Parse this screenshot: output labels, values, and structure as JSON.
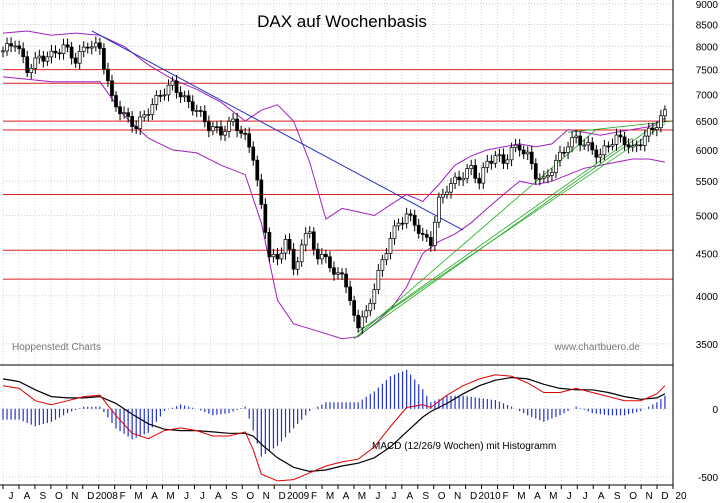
{
  "chart_data": [
    {
      "type": "candlestick",
      "title": "DAX auf Wochenbasis",
      "watermark_left": "Hoppenstedt Charts",
      "watermark_right": "www.chartbuero.de",
      "y_ticks": [
        3500,
        4000,
        4500,
        5000,
        5500,
        6000,
        6500,
        7000,
        7500,
        8000,
        8500,
        9000
      ],
      "ylim": [
        3300,
        9100
      ],
      "y_scale": "log",
      "grid": true,
      "horizontal_levels": [
        7500,
        7220,
        6500,
        6340,
        5300,
        4540,
        4190
      ],
      "x_labels": [
        "J",
        "A",
        "S",
        "O",
        "N",
        "D",
        "2008",
        "F",
        "M",
        "A",
        "M",
        "J",
        "J",
        "A",
        "S",
        "O",
        "N",
        "D",
        "2009",
        "F",
        "M",
        "A",
        "M",
        "J",
        "J",
        "A",
        "S",
        "O",
        "N",
        "D",
        "2010",
        "F",
        "M",
        "A",
        "M",
        "J",
        "J",
        "A",
        "S",
        "O",
        "N",
        "D",
        "20"
      ],
      "x_start": "2007-07",
      "close_series_points": [
        {
          "w": 0,
          "v": 7900
        },
        {
          "w": 3,
          "v": 8100
        },
        {
          "w": 6,
          "v": 7500
        },
        {
          "w": 9,
          "v": 7750
        },
        {
          "w": 12,
          "v": 7800
        },
        {
          "w": 15,
          "v": 8000
        },
        {
          "w": 18,
          "v": 7700
        },
        {
          "w": 21,
          "v": 8050
        },
        {
          "w": 24,
          "v": 7950
        },
        {
          "w": 27,
          "v": 6900
        },
        {
          "w": 30,
          "v": 6600
        },
        {
          "w": 33,
          "v": 6400
        },
        {
          "w": 36,
          "v": 6700
        },
        {
          "w": 39,
          "v": 7000
        },
        {
          "w": 42,
          "v": 7200
        },
        {
          "w": 45,
          "v": 6900
        },
        {
          "w": 48,
          "v": 6700
        },
        {
          "w": 51,
          "v": 6400
        },
        {
          "w": 54,
          "v": 6300
        },
        {
          "w": 57,
          "v": 6500
        },
        {
          "w": 60,
          "v": 6200
        },
        {
          "w": 62,
          "v": 5900
        },
        {
          "w": 64,
          "v": 5100
        },
        {
          "w": 66,
          "v": 4500
        },
        {
          "w": 68,
          "v": 4400
        },
        {
          "w": 70,
          "v": 4700
        },
        {
          "w": 72,
          "v": 4300
        },
        {
          "w": 74,
          "v": 4600
        },
        {
          "w": 76,
          "v": 4800
        },
        {
          "w": 78,
          "v": 4400
        },
        {
          "w": 80,
          "v": 4500
        },
        {
          "w": 82,
          "v": 4200
        },
        {
          "w": 84,
          "v": 4300
        },
        {
          "w": 86,
          "v": 3900
        },
        {
          "w": 88,
          "v": 3700
        },
        {
          "w": 90,
          "v": 3800
        },
        {
          "w": 92,
          "v": 4100
        },
        {
          "w": 94,
          "v": 4400
        },
        {
          "w": 96,
          "v": 4700
        },
        {
          "w": 98,
          "v": 4900
        },
        {
          "w": 100,
          "v": 5000
        },
        {
          "w": 102,
          "v": 4900
        },
        {
          "w": 104,
          "v": 4700
        },
        {
          "w": 106,
          "v": 4650
        },
        {
          "w": 108,
          "v": 5200
        },
        {
          "w": 110,
          "v": 5400
        },
        {
          "w": 112,
          "v": 5500
        },
        {
          "w": 114,
          "v": 5600
        },
        {
          "w": 116,
          "v": 5700
        },
        {
          "w": 118,
          "v": 5500
        },
        {
          "w": 120,
          "v": 5800
        },
        {
          "w": 122,
          "v": 5900
        },
        {
          "w": 124,
          "v": 5800
        },
        {
          "w": 126,
          "v": 6000
        },
        {
          "w": 128,
          "v": 6050
        },
        {
          "w": 130,
          "v": 5900
        },
        {
          "w": 132,
          "v": 5600
        },
        {
          "w": 134,
          "v": 5500
        },
        {
          "w": 136,
          "v": 5700
        },
        {
          "w": 138,
          "v": 5900
        },
        {
          "w": 140,
          "v": 6100
        },
        {
          "w": 142,
          "v": 6200
        },
        {
          "w": 144,
          "v": 6100
        },
        {
          "w": 146,
          "v": 6000
        },
        {
          "w": 148,
          "v": 5900
        },
        {
          "w": 150,
          "v": 6100
        },
        {
          "w": 152,
          "v": 6200
        },
        {
          "w": 154,
          "v": 6150
        },
        {
          "w": 156,
          "v": 6000
        },
        {
          "w": 158,
          "v": 6150
        },
        {
          "w": 160,
          "v": 6300
        },
        {
          "w": 162,
          "v": 6450
        },
        {
          "w": 164,
          "v": 6650
        }
      ],
      "upper_band_points": [
        {
          "w": 0,
          "v": 8300
        },
        {
          "w": 6,
          "v": 8350
        },
        {
          "w": 12,
          "v": 8250
        },
        {
          "w": 18,
          "v": 8300
        },
        {
          "w": 24,
          "v": 8250
        },
        {
          "w": 30,
          "v": 8000
        },
        {
          "w": 36,
          "v": 7600
        },
        {
          "w": 42,
          "v": 7300
        },
        {
          "w": 48,
          "v": 7100
        },
        {
          "w": 54,
          "v": 6850
        },
        {
          "w": 60,
          "v": 6500
        },
        {
          "w": 64,
          "v": 6700
        },
        {
          "w": 68,
          "v": 6800
        },
        {
          "w": 72,
          "v": 6500
        },
        {
          "w": 76,
          "v": 5800
        },
        {
          "w": 80,
          "v": 4950
        },
        {
          "w": 84,
          "v": 5100
        },
        {
          "w": 88,
          "v": 5050
        },
        {
          "w": 92,
          "v": 5000
        },
        {
          "w": 96,
          "v": 5150
        },
        {
          "w": 100,
          "v": 5300
        },
        {
          "w": 104,
          "v": 5200
        },
        {
          "w": 108,
          "v": 5450
        },
        {
          "w": 112,
          "v": 5750
        },
        {
          "w": 116,
          "v": 5900
        },
        {
          "w": 120,
          "v": 6000
        },
        {
          "w": 124,
          "v": 6050
        },
        {
          "w": 128,
          "v": 6100
        },
        {
          "w": 132,
          "v": 6050
        },
        {
          "w": 136,
          "v": 6100
        },
        {
          "w": 140,
          "v": 6350
        },
        {
          "w": 144,
          "v": 6300
        },
        {
          "w": 148,
          "v": 6250
        },
        {
          "w": 152,
          "v": 6300
        },
        {
          "w": 156,
          "v": 6350
        },
        {
          "w": 160,
          "v": 6400
        },
        {
          "w": 164,
          "v": 6550
        }
      ],
      "lower_band_points": [
        {
          "w": 0,
          "v": 7350
        },
        {
          "w": 6,
          "v": 7300
        },
        {
          "w": 12,
          "v": 7250
        },
        {
          "w": 18,
          "v": 7250
        },
        {
          "w": 24,
          "v": 7250
        },
        {
          "w": 30,
          "v": 6600
        },
        {
          "w": 36,
          "v": 6200
        },
        {
          "w": 42,
          "v": 6000
        },
        {
          "w": 48,
          "v": 5950
        },
        {
          "w": 54,
          "v": 5750
        },
        {
          "w": 60,
          "v": 5600
        },
        {
          "w": 64,
          "v": 4900
        },
        {
          "w": 68,
          "v": 3950
        },
        {
          "w": 72,
          "v": 3700
        },
        {
          "w": 76,
          "v": 3650
        },
        {
          "w": 80,
          "v": 3600
        },
        {
          "w": 84,
          "v": 3550
        },
        {
          "w": 88,
          "v": 3570
        },
        {
          "w": 92,
          "v": 3700
        },
        {
          "w": 96,
          "v": 3850
        },
        {
          "w": 100,
          "v": 4100
        },
        {
          "w": 104,
          "v": 4500
        },
        {
          "w": 108,
          "v": 4650
        },
        {
          "w": 112,
          "v": 4750
        },
        {
          "w": 116,
          "v": 4900
        },
        {
          "w": 120,
          "v": 5100
        },
        {
          "w": 124,
          "v": 5300
        },
        {
          "w": 128,
          "v": 5500
        },
        {
          "w": 132,
          "v": 5450
        },
        {
          "w": 136,
          "v": 5500
        },
        {
          "w": 140,
          "v": 5600
        },
        {
          "w": 144,
          "v": 5700
        },
        {
          "w": 148,
          "v": 5750
        },
        {
          "w": 152,
          "v": 5800
        },
        {
          "w": 156,
          "v": 5850
        },
        {
          "w": 160,
          "v": 5850
        },
        {
          "w": 164,
          "v": 5800
        }
      ],
      "blue_trendline": [
        {
          "w": 22,
          "v": 8350
        },
        {
          "w": 114,
          "v": 4800
        }
      ],
      "green_trendlines": [
        [
          {
            "w": 87,
            "v": 3550
          },
          {
            "w": 162,
            "v": 6450
          }
        ],
        [
          {
            "w": 87,
            "v": 3550
          },
          {
            "w": 147,
            "v": 6350
          }
        ],
        [
          {
            "w": 88,
            "v": 3620
          },
          {
            "w": 164,
            "v": 6450
          }
        ],
        [
          {
            "w": 88,
            "v": 3620
          },
          {
            "w": 156,
            "v": 6200
          }
        ],
        [
          {
            "w": 140,
            "v": 6300
          },
          {
            "w": 166,
            "v": 6500
          }
        ]
      ],
      "colors": {
        "bars": "#000000",
        "bands": "#a020c0",
        "levels": "#dd2222",
        "trend_down": "#2233bb",
        "trend_up": "#22aa22"
      }
    },
    {
      "type": "macd",
      "label": "MACD (12/26/9 Wochen) mit Histogramm",
      "y_ticks": [
        -500,
        0
      ],
      "ylim": [
        -560,
        300
      ],
      "macd_points": [
        {
          "w": 0,
          "v": 170
        },
        {
          "w": 4,
          "v": 150
        },
        {
          "w": 8,
          "v": 60
        },
        {
          "w": 12,
          "v": 30
        },
        {
          "w": 16,
          "v": 60
        },
        {
          "w": 20,
          "v": 90
        },
        {
          "w": 24,
          "v": 100
        },
        {
          "w": 28,
          "v": -50
        },
        {
          "w": 32,
          "v": -180
        },
        {
          "w": 36,
          "v": -220
        },
        {
          "w": 40,
          "v": -160
        },
        {
          "w": 44,
          "v": -140
        },
        {
          "w": 48,
          "v": -160
        },
        {
          "w": 52,
          "v": -200
        },
        {
          "w": 56,
          "v": -200
        },
        {
          "w": 60,
          "v": -170
        },
        {
          "w": 62,
          "v": -300
        },
        {
          "w": 64,
          "v": -480
        },
        {
          "w": 68,
          "v": -530
        },
        {
          "w": 72,
          "v": -520
        },
        {
          "w": 76,
          "v": -470
        },
        {
          "w": 80,
          "v": -420
        },
        {
          "w": 84,
          "v": -390
        },
        {
          "w": 88,
          "v": -370
        },
        {
          "w": 92,
          "v": -280
        },
        {
          "w": 96,
          "v": -130
        },
        {
          "w": 100,
          "v": 10
        },
        {
          "w": 104,
          "v": 30
        },
        {
          "w": 106,
          "v": 10
        },
        {
          "w": 110,
          "v": 100
        },
        {
          "w": 114,
          "v": 170
        },
        {
          "w": 118,
          "v": 220
        },
        {
          "w": 122,
          "v": 250
        },
        {
          "w": 126,
          "v": 240
        },
        {
          "w": 130,
          "v": 190
        },
        {
          "w": 134,
          "v": 120
        },
        {
          "w": 138,
          "v": 120
        },
        {
          "w": 142,
          "v": 150
        },
        {
          "w": 146,
          "v": 120
        },
        {
          "w": 150,
          "v": 90
        },
        {
          "w": 154,
          "v": 60
        },
        {
          "w": 158,
          "v": 60
        },
        {
          "w": 162,
          "v": 110
        },
        {
          "w": 164,
          "v": 170
        }
      ],
      "signal_points": [
        {
          "w": 0,
          "v": 220
        },
        {
          "w": 4,
          "v": 200
        },
        {
          "w": 8,
          "v": 140
        },
        {
          "w": 12,
          "v": 90
        },
        {
          "w": 16,
          "v": 80
        },
        {
          "w": 20,
          "v": 80
        },
        {
          "w": 24,
          "v": 90
        },
        {
          "w": 28,
          "v": 40
        },
        {
          "w": 32,
          "v": -40
        },
        {
          "w": 36,
          "v": -110
        },
        {
          "w": 40,
          "v": -150
        },
        {
          "w": 44,
          "v": -160
        },
        {
          "w": 48,
          "v": -160
        },
        {
          "w": 52,
          "v": -170
        },
        {
          "w": 56,
          "v": -180
        },
        {
          "w": 60,
          "v": -180
        },
        {
          "w": 62,
          "v": -200
        },
        {
          "w": 64,
          "v": -260
        },
        {
          "w": 68,
          "v": -360
        },
        {
          "w": 72,
          "v": -430
        },
        {
          "w": 76,
          "v": -460
        },
        {
          "w": 80,
          "v": -450
        },
        {
          "w": 84,
          "v": -420
        },
        {
          "w": 88,
          "v": -400
        },
        {
          "w": 92,
          "v": -360
        },
        {
          "w": 96,
          "v": -280
        },
        {
          "w": 100,
          "v": -170
        },
        {
          "w": 104,
          "v": -60
        },
        {
          "w": 106,
          "v": -20
        },
        {
          "w": 110,
          "v": 40
        },
        {
          "w": 114,
          "v": 110
        },
        {
          "w": 118,
          "v": 170
        },
        {
          "w": 122,
          "v": 210
        },
        {
          "w": 126,
          "v": 230
        },
        {
          "w": 130,
          "v": 220
        },
        {
          "w": 134,
          "v": 180
        },
        {
          "w": 138,
          "v": 150
        },
        {
          "w": 142,
          "v": 140
        },
        {
          "w": 146,
          "v": 140
        },
        {
          "w": 150,
          "v": 120
        },
        {
          "w": 154,
          "v": 90
        },
        {
          "w": 158,
          "v": 70
        },
        {
          "w": 162,
          "v": 80
        },
        {
          "w": 164,
          "v": 110
        }
      ],
      "colors": {
        "macd": "#dd0000",
        "signal": "#000000",
        "histogram": "#2233cc"
      }
    }
  ]
}
